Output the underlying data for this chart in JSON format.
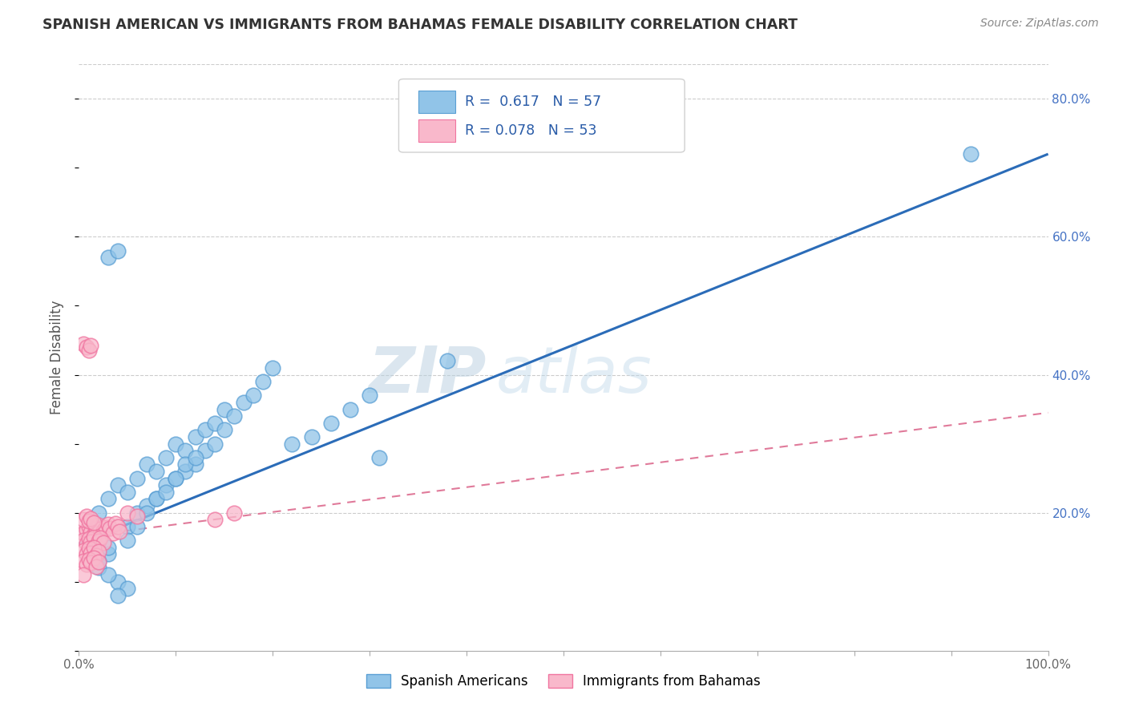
{
  "title": "SPANISH AMERICAN VS IMMIGRANTS FROM BAHAMAS FEMALE DISABILITY CORRELATION CHART",
  "source": "Source: ZipAtlas.com",
  "ylabel": "Female Disability",
  "xlim": [
    0,
    1.0
  ],
  "ylim": [
    0,
    0.85
  ],
  "xticks": [
    0.0,
    0.1,
    0.2,
    0.3,
    0.4,
    0.5,
    0.6,
    0.7,
    0.8,
    0.9,
    1.0
  ],
  "xticklabels": [
    "0.0%",
    "",
    "",
    "",
    "",
    "",
    "",
    "",
    "",
    "",
    "100.0%"
  ],
  "yticks_right": [
    0.2,
    0.4,
    0.6,
    0.8
  ],
  "yticklabels_right": [
    "20.0%",
    "40.0%",
    "60.0%",
    "80.0%"
  ],
  "grid_color": "#cccccc",
  "background_color": "#ffffff",
  "blue_color": "#91c4e8",
  "blue_edge_color": "#5a9fd4",
  "pink_color": "#f9b8cb",
  "pink_edge_color": "#f075a0",
  "blue_R": 0.617,
  "blue_N": 57,
  "pink_R": 0.078,
  "pink_N": 53,
  "legend_label_blue": "Spanish Americans",
  "legend_label_pink": "Immigrants from Bahamas",
  "watermark_zip": "ZIP",
  "watermark_atlas": "atlas",
  "blue_line_x": [
    0.0,
    1.0
  ],
  "blue_line_y": [
    0.155,
    0.72
  ],
  "pink_line_x": [
    0.0,
    1.0
  ],
  "pink_line_y": [
    0.165,
    0.345
  ],
  "blue_scatter_x": [
    0.02,
    0.03,
    0.04,
    0.05,
    0.06,
    0.07,
    0.08,
    0.09,
    0.1,
    0.11,
    0.12,
    0.13,
    0.14,
    0.15,
    0.16,
    0.17,
    0.18,
    0.19,
    0.2,
    0.05,
    0.06,
    0.07,
    0.08,
    0.09,
    0.1,
    0.11,
    0.12,
    0.13,
    0.14,
    0.15,
    0.03,
    0.04,
    0.05,
    0.06,
    0.07,
    0.08,
    0.09,
    0.1,
    0.11,
    0.12,
    0.22,
    0.24,
    0.26,
    0.28,
    0.3,
    0.02,
    0.03,
    0.04,
    0.05,
    0.31,
    0.38,
    0.02,
    0.03,
    0.02,
    0.03,
    0.04,
    0.92
  ],
  "blue_scatter_y": [
    0.2,
    0.22,
    0.24,
    0.23,
    0.25,
    0.27,
    0.26,
    0.28,
    0.3,
    0.29,
    0.31,
    0.32,
    0.33,
    0.35,
    0.34,
    0.36,
    0.37,
    0.39,
    0.41,
    0.18,
    0.2,
    0.21,
    0.22,
    0.24,
    0.25,
    0.26,
    0.27,
    0.29,
    0.3,
    0.32,
    0.57,
    0.58,
    0.16,
    0.18,
    0.2,
    0.22,
    0.23,
    0.25,
    0.27,
    0.28,
    0.3,
    0.31,
    0.33,
    0.35,
    0.37,
    0.12,
    0.14,
    0.1,
    0.09,
    0.28,
    0.42,
    0.16,
    0.15,
    0.13,
    0.11,
    0.08,
    0.72
  ],
  "pink_scatter_x": [
    0.005,
    0.008,
    0.01,
    0.012,
    0.015,
    0.018,
    0.02,
    0.022,
    0.025,
    0.028,
    0.03,
    0.032,
    0.035,
    0.038,
    0.04,
    0.042,
    0.005,
    0.008,
    0.01,
    0.012,
    0.015,
    0.018,
    0.02,
    0.022,
    0.025,
    0.005,
    0.008,
    0.01,
    0.012,
    0.015,
    0.05,
    0.06,
    0.005,
    0.008,
    0.01,
    0.012,
    0.015,
    0.018,
    0.02,
    0.005,
    0.008,
    0.01,
    0.012,
    0.015,
    0.018,
    0.02,
    0.14,
    0.16,
    0.005,
    0.008,
    0.01,
    0.012,
    0.005
  ],
  "pink_scatter_y": [
    0.17,
    0.175,
    0.18,
    0.172,
    0.168,
    0.178,
    0.182,
    0.176,
    0.174,
    0.179,
    0.183,
    0.177,
    0.171,
    0.185,
    0.18,
    0.173,
    0.16,
    0.155,
    0.162,
    0.158,
    0.165,
    0.152,
    0.159,
    0.163,
    0.157,
    0.19,
    0.195,
    0.188,
    0.192,
    0.186,
    0.2,
    0.195,
    0.145,
    0.14,
    0.148,
    0.142,
    0.15,
    0.138,
    0.144,
    0.13,
    0.125,
    0.132,
    0.128,
    0.135,
    0.122,
    0.129,
    0.19,
    0.2,
    0.445,
    0.44,
    0.435,
    0.442,
    0.11
  ]
}
